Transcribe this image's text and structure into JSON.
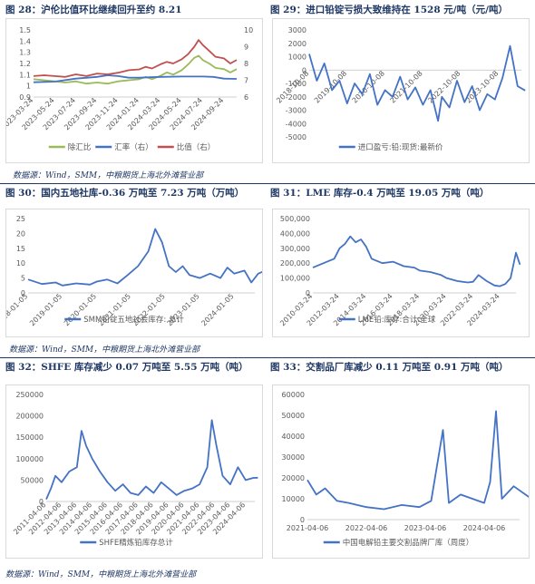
{
  "captions": {
    "c28": "图 28：沪伦比值环比继续回升至约 8.21",
    "c29": "图 29：进口铅锭亏损大致维持在 1528 元/吨（元/吨）",
    "c30": "图 30：国内五地社库-0.36 万吨至 7.23 万吨（万吨）",
    "c31": "图 31：LME 库存-0.4 万吨至 19.05 万吨（吨）",
    "c32": "图 32：SHFE 库存减少 0.07 万吨至 5.55 万吨（吨）",
    "c33": "图 33：交割品厂库减少 0.11 万吨至 0.91 万吨（吨）"
  },
  "sources": {
    "s1": "数据源：Wind，SMM，中粮期货上海北外滩营业部",
    "s2": "数据源：Wind，SMM，中粮期货上海北外滩营业部",
    "s3": "数据源：Wind，SMM，中粮期货上海北外滩营业部"
  },
  "colors": {
    "caption": "#1f3864",
    "blue": "#4472c4",
    "green": "#9bbb59",
    "red": "#c0504d"
  },
  "chart_data": [
    {
      "id": "c28",
      "type": "line",
      "x_ticks": [
        "2023-03-24",
        "2023-05-24",
        "2023-07-24",
        "2023-09-24",
        "2023-11-24",
        "2024-01-24",
        "2024-03-24",
        "2024-05-24",
        "2024-07-24",
        "2024-09-24"
      ],
      "y_left": {
        "range": [
          0.9,
          1.5
        ],
        "ticks": [
          "1.5",
          "1.4",
          "1.3",
          "1.2",
          "1.1",
          "1",
          "0.9"
        ]
      },
      "y_right": {
        "range": [
          6,
          10
        ],
        "ticks": [
          "10",
          "9",
          "8",
          "7",
          "6"
        ]
      },
      "series": [
        {
          "name": "除汇比",
          "color": "#9bbb59",
          "axis": "left",
          "points": [
            [
              0,
              1.06
            ],
            [
              0.5,
              1.05
            ],
            [
              1,
              1.04
            ],
            [
              1.5,
              1.03
            ],
            [
              2,
              1.04
            ],
            [
              2.5,
              1.02
            ],
            [
              3,
              1.03
            ],
            [
              3.5,
              1.02
            ],
            [
              4,
              1.04
            ],
            [
              4.5,
              1.05
            ],
            [
              5,
              1.06
            ],
            [
              5.3,
              1.08
            ],
            [
              5.6,
              1.06
            ],
            [
              6,
              1.09
            ],
            [
              6.3,
              1.12
            ],
            [
              6.6,
              1.1
            ],
            [
              7,
              1.14
            ],
            [
              7.3,
              1.19
            ],
            [
              7.6,
              1.25
            ],
            [
              7.8,
              1.27
            ],
            [
              8,
              1.23
            ],
            [
              8.3,
              1.2
            ],
            [
              8.6,
              1.16
            ],
            [
              9,
              1.15
            ],
            [
              9.3,
              1.12
            ],
            [
              9.6,
              1.15
            ]
          ]
        },
        {
          "name": "汇率（右）",
          "color": "#4472c4",
          "axis": "right",
          "points": [
            [
              0,
              6.88
            ],
            [
              1,
              6.92
            ],
            [
              2,
              7.1
            ],
            [
              3,
              7.2
            ],
            [
              3.5,
              7.3
            ],
            [
              4,
              7.25
            ],
            [
              4.5,
              7.15
            ],
            [
              5,
              7.15
            ],
            [
              5.5,
              7.18
            ],
            [
              6,
              7.2
            ],
            [
              7,
              7.22
            ],
            [
              8,
              7.22
            ],
            [
              8.5,
              7.2
            ],
            [
              9,
              7.1
            ],
            [
              9.6,
              7.08
            ]
          ]
        },
        {
          "name": "比值（右）",
          "color": "#c0504d",
          "axis": "right",
          "points": [
            [
              0,
              7.25
            ],
            [
              0.5,
              7.3
            ],
            [
              1,
              7.25
            ],
            [
              1.5,
              7.2
            ],
            [
              2,
              7.35
            ],
            [
              2.5,
              7.25
            ],
            [
              3,
              7.4
            ],
            [
              3.5,
              7.35
            ],
            [
              4,
              7.45
            ],
            [
              4.5,
              7.6
            ],
            [
              5,
              7.65
            ],
            [
              5.3,
              7.8
            ],
            [
              5.6,
              7.7
            ],
            [
              6,
              7.95
            ],
            [
              6.3,
              8.1
            ],
            [
              6.6,
              8.0
            ],
            [
              7,
              8.25
            ],
            [
              7.3,
              8.55
            ],
            [
              7.6,
              9.0
            ],
            [
              7.8,
              9.4
            ],
            [
              8,
              9.1
            ],
            [
              8.3,
              8.75
            ],
            [
              8.6,
              8.4
            ],
            [
              9,
              8.3
            ],
            [
              9.3,
              8.0
            ],
            [
              9.6,
              8.21
            ]
          ]
        }
      ],
      "legend": [
        "除汇比",
        "汇率（右）",
        "比值（右）"
      ]
    },
    {
      "id": "c29",
      "type": "line",
      "x_ticks": [
        "2018-10-08",
        "2019-10-08",
        "2020-10-08",
        "2021-10-08",
        "2022-10-08",
        "2023-10-08"
      ],
      "y": {
        "range": [
          -5000,
          3000
        ],
        "ticks": [
          "3000",
          "2000",
          "1000",
          "0",
          "-1000",
          "-2000",
          "-3000",
          "-4000",
          "-5000"
        ]
      },
      "series": [
        {
          "name": "进口盈亏:铅:现货:最新价",
          "color": "#4472c4",
          "points": [
            [
              0,
              1200
            ],
            [
              0.2,
              -800
            ],
            [
              0.4,
              500
            ],
            [
              0.6,
              -1500
            ],
            [
              0.8,
              -800
            ],
            [
              1,
              -2500
            ],
            [
              1.2,
              -1000
            ],
            [
              1.4,
              -1800
            ],
            [
              1.6,
              -300
            ],
            [
              1.8,
              -2600
            ],
            [
              2,
              -1500
            ],
            [
              2.2,
              -2000
            ],
            [
              2.4,
              -500
            ],
            [
              2.6,
              -2200
            ],
            [
              2.8,
              -1300
            ],
            [
              3,
              -2600
            ],
            [
              3.2,
              -1500
            ],
            [
              3.4,
              -3800
            ],
            [
              3.5,
              -2000
            ],
            [
              3.7,
              -2800
            ],
            [
              3.9,
              -800
            ],
            [
              4.1,
              -2400
            ],
            [
              4.3,
              -1200
            ],
            [
              4.5,
              -3000
            ],
            [
              4.7,
              -1800
            ],
            [
              4.9,
              -2200
            ],
            [
              5.1,
              -600
            ],
            [
              5.3,
              1800
            ],
            [
              5.5,
              -1200
            ],
            [
              5.7,
              -1528
            ]
          ]
        }
      ],
      "legend": [
        "进口盈亏:铅:现货:最新价"
      ]
    },
    {
      "id": "c30",
      "type": "line",
      "x_ticks": [
        "2018-01-05",
        "2019-01-05",
        "2020-01-05",
        "2021-01-05",
        "2022-01-05",
        "2023-01-05",
        "2024-01-05"
      ],
      "y": {
        "range": [
          0,
          25
        ],
        "ticks": [
          "25",
          "20",
          "15",
          "10",
          "5",
          "0"
        ]
      },
      "series": [
        {
          "name": "SMM铅锭五地社会库存: 总计",
          "color": "#4472c4",
          "points": [
            [
              0,
              4.5
            ],
            [
              0.4,
              3
            ],
            [
              0.8,
              3.5
            ],
            [
              1,
              2.5
            ],
            [
              1.4,
              3.2
            ],
            [
              1.8,
              2.8
            ],
            [
              2,
              3.8
            ],
            [
              2.3,
              4.5
            ],
            [
              2.6,
              3.2
            ],
            [
              2.9,
              6
            ],
            [
              3.2,
              9
            ],
            [
              3.5,
              14
            ],
            [
              3.7,
              21.5
            ],
            [
              3.9,
              17
            ],
            [
              4.1,
              9
            ],
            [
              4.3,
              7
            ],
            [
              4.5,
              9
            ],
            [
              4.7,
              6
            ],
            [
              5,
              5
            ],
            [
              5.3,
              6.5
            ],
            [
              5.6,
              5
            ],
            [
              5.8,
              8.5
            ],
            [
              6,
              6.5
            ],
            [
              6.3,
              7.5
            ],
            [
              6.5,
              3.5
            ],
            [
              6.7,
              6.5
            ],
            [
              6.85,
              7.23
            ]
          ]
        }
      ],
      "legend": [
        "SMM铅锭五地社会库存: 总计"
      ]
    },
    {
      "id": "c31",
      "type": "line",
      "x_ticks": [
        "2010-03-24",
        "2012-03-24",
        "2014-03-24",
        "2016-03-24",
        "2018-03-24",
        "2020-03-24",
        "2022-03-24",
        "2024-03-24"
      ],
      "y": {
        "range": [
          0,
          500000
        ],
        "ticks": [
          "500,000",
          "400,000",
          "300,000",
          "200,000",
          "100,000",
          "0"
        ]
      },
      "series": [
        {
          "name": "LME铅:库存:合计:全球",
          "color": "#4472c4",
          "points": [
            [
              0,
              170000
            ],
            [
              0.4,
              200000
            ],
            [
              0.8,
              230000
            ],
            [
              1,
              300000
            ],
            [
              1.2,
              330000
            ],
            [
              1.4,
              380000
            ],
            [
              1.6,
              340000
            ],
            [
              1.8,
              360000
            ],
            [
              2,
              310000
            ],
            [
              2.2,
              230000
            ],
            [
              2.6,
              200000
            ],
            [
              3,
              210000
            ],
            [
              3.4,
              180000
            ],
            [
              3.8,
              170000
            ],
            [
              4,
              150000
            ],
            [
              4.4,
              140000
            ],
            [
              4.8,
              120000
            ],
            [
              5,
              100000
            ],
            [
              5.4,
              80000
            ],
            [
              5.8,
              70000
            ],
            [
              6,
              75000
            ],
            [
              6.2,
              120000
            ],
            [
              6.5,
              80000
            ],
            [
              6.8,
              50000
            ],
            [
              7,
              45000
            ],
            [
              7.2,
              60000
            ],
            [
              7.4,
              100000
            ],
            [
              7.6,
              270000
            ],
            [
              7.75,
              190500
            ]
          ]
        }
      ],
      "legend": [
        "LME铅:库存:合计:全球"
      ]
    },
    {
      "id": "c32",
      "type": "line",
      "x_ticks": [
        "2011-04-06",
        "2012-04-06",
        "2013-04-06",
        "2014-04-06",
        "2015-04-06",
        "2016-04-06",
        "2017-04-06",
        "2018-04-06",
        "2019-04-06",
        "2020-04-06",
        "2021-04-06",
        "2022-04-06",
        "2023-04-06",
        "2024-04-06"
      ],
      "y": {
        "range": [
          0,
          250000
        ],
        "ticks": [
          "250000",
          "200000",
          "150000",
          "100000",
          "50000",
          "0"
        ]
      },
      "series": [
        {
          "name": "SHFE精炼铅库存总计",
          "color": "#4472c4",
          "points": [
            [
              0,
              5000
            ],
            [
              0.3,
              30000
            ],
            [
              0.6,
              60000
            ],
            [
              1,
              45000
            ],
            [
              1.5,
              70000
            ],
            [
              2,
              80000
            ],
            [
              2.3,
              165000
            ],
            [
              2.6,
              130000
            ],
            [
              3,
              100000
            ],
            [
              3.5,
              70000
            ],
            [
              4,
              45000
            ],
            [
              4.5,
              25000
            ],
            [
              5,
              40000
            ],
            [
              5.5,
              20000
            ],
            [
              6,
              15000
            ],
            [
              6.5,
              35000
            ],
            [
              7,
              20000
            ],
            [
              7.5,
              45000
            ],
            [
              8,
              30000
            ],
            [
              8.5,
              15000
            ],
            [
              9,
              25000
            ],
            [
              9.5,
              30000
            ],
            [
              10,
              40000
            ],
            [
              10.5,
              80000
            ],
            [
              10.8,
              190000
            ],
            [
              11.1,
              130000
            ],
            [
              11.5,
              60000
            ],
            [
              12,
              40000
            ],
            [
              12.5,
              80000
            ],
            [
              13,
              50000
            ],
            [
              13.5,
              55000
            ],
            [
              13.8,
              55500
            ]
          ]
        }
      ],
      "legend": [
        "SHFE精炼铅库存总计"
      ]
    },
    {
      "id": "c33",
      "type": "line",
      "x_ticks": [
        "2021-04-06",
        "2022-04-06",
        "2023-04-06",
        "2024-04-06"
      ],
      "y": {
        "range": [
          0,
          60000
        ],
        "ticks": [
          "60000",
          "50000",
          "40000",
          "30000",
          "20000",
          "10000",
          "0"
        ]
      },
      "series": [
        {
          "name": "中国电解铅主要交割品牌厂库（周度）",
          "color": "#4472c4",
          "points": [
            [
              0,
              19000
            ],
            [
              0.15,
              12000
            ],
            [
              0.3,
              15000
            ],
            [
              0.5,
              9000
            ],
            [
              0.7,
              8000
            ],
            [
              1,
              6000
            ],
            [
              1.3,
              5000
            ],
            [
              1.6,
              7000
            ],
            [
              1.9,
              6000
            ],
            [
              2.1,
              9000
            ],
            [
              2.3,
              43000
            ],
            [
              2.4,
              8000
            ],
            [
              2.6,
              12000
            ],
            [
              2.8,
              10000
            ],
            [
              3,
              8000
            ],
            [
              3.1,
              18000
            ],
            [
              3.2,
              52000
            ],
            [
              3.3,
              10000
            ],
            [
              3.5,
              16000
            ],
            [
              3.7,
              12000
            ],
            [
              3.85,
              9100
            ]
          ]
        }
      ],
      "legend": [
        "中国电解铅主要交割品牌厂库（周度）"
      ]
    }
  ]
}
